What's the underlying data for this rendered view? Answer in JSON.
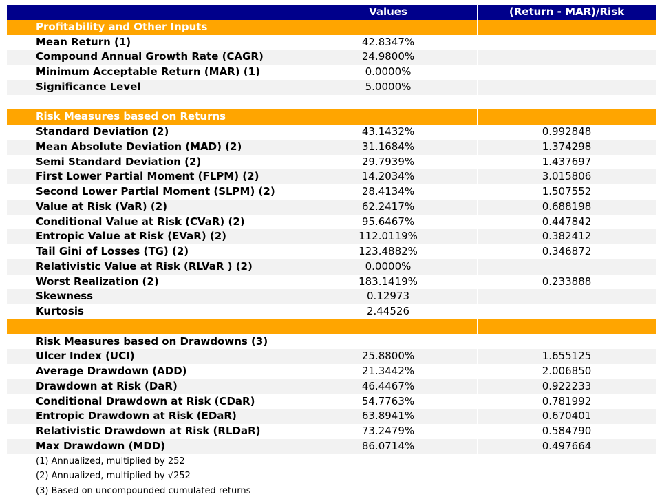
{
  "table": {
    "header": [
      "Values",
      "(Return - MAR)/Risk"
    ],
    "sections": [
      {
        "title": "Profitability and Other Inputs",
        "rows": [
          [
            "Mean Return (1)",
            "42.8347%"
          ],
          [
            "Compound Annual Growth Rate (CAGR)",
            "24.9800%"
          ],
          [
            "Minimum Acceptable Return (MAR) (1)",
            "0.0000%"
          ],
          [
            "Significance Level",
            "5.0000%"
          ]
        ]
      },
      {
        "title": "Risk Measures based on Returns",
        "rows": [
          [
            "Standard Deviation (2)",
            "43.1432%",
            "0.992848"
          ],
          [
            "Mean Absolute Deviation (MAD) (2)",
            "31.1684%",
            "1.374298"
          ],
          [
            "Semi Standard Deviation (2)",
            "29.7939%",
            "1.437697"
          ],
          [
            "First Lower Partial Moment (FLPM) (2)",
            "14.2034%",
            "3.015806"
          ],
          [
            "Second Lower Partial Moment (SLPM) (2)",
            "28.4134%",
            "1.507552"
          ],
          [
            "Value at Risk (VaR) (2)",
            "62.2417%",
            "0.688198"
          ],
          [
            "Conditional Value at Risk (CVaR) (2)",
            "95.6467%",
            "0.447842"
          ],
          [
            "Entropic Value at Risk (EVaR) (2)",
            "112.0119%",
            "0.382412"
          ],
          [
            "Tail Gini of Losses (TG) (2)",
            "123.4882%",
            "0.346872"
          ],
          [
            "Relativistic Value at Risk (RLVaR ) (2)",
            "0.0000%"
          ],
          [
            "Worst Realization (2)",
            "183.1419%",
            "0.233888"
          ],
          [
            "Skewness",
            "0.12973"
          ],
          [
            "Kurtosis",
            "2.44526"
          ]
        ]
      },
      {
        "title": "Risk Measures based on Drawdowns (3)",
        "rows": [
          [
            "Ulcer Index (UCI)",
            "25.8800%",
            "1.655125"
          ],
          [
            "Average Drawdown (ADD)",
            "21.3442%",
            "2.006850"
          ],
          [
            "Drawdown at Risk (DaR)",
            "46.4467%",
            "0.922233"
          ],
          [
            "Conditional Drawdown at Risk (CDaR)",
            "54.7763%",
            "0.781992"
          ],
          [
            "Entropic Drawdown at Risk (EDaR)",
            "63.8941%",
            "0.670401"
          ],
          [
            "Relativistic Drawdown at Risk (RLDaR)",
            "73.2479%",
            "0.584790"
          ],
          [
            "Max Drawdown (MDD)",
            "86.0714%",
            "0.497664"
          ]
        ]
      }
    ]
  },
  "notes": [
    "(1) Annualized, multiplied by 252",
    "(2) Annualized, multiplied by √252",
    "(3) Based on uncompounded cumulated returns"
  ]
}
